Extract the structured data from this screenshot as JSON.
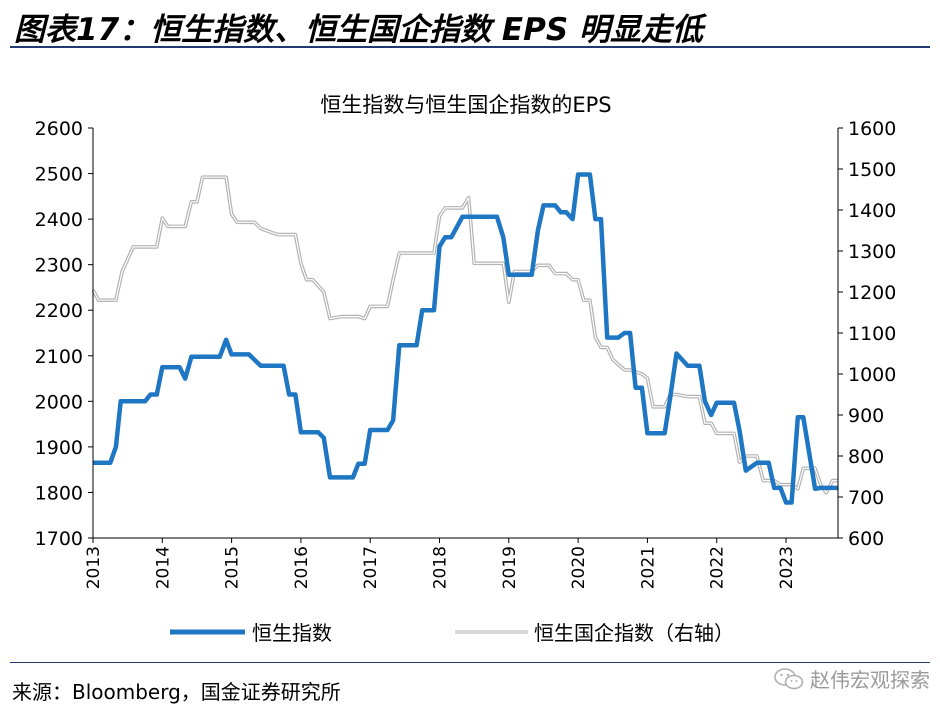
{
  "figure": {
    "title": "图表17：恒生指数、恒生国企指数 EPS 明显走低",
    "source": "来源：Bloomberg，国金证券研究所",
    "watermark": "赵伟宏观探索"
  },
  "chart_data": {
    "type": "line",
    "title": "恒生指数与恒生国企指数的EPS",
    "x_ticks": [
      "2013",
      "2014",
      "2015",
      "2016",
      "2017",
      "2018",
      "2019",
      "2020",
      "2021",
      "2022",
      "2023"
    ],
    "xlim": [
      2013,
      2023.75
    ],
    "ylim_left": [
      1700,
      2600
    ],
    "ylim_right": [
      600,
      1600
    ],
    "y_ticks_left": [
      1700,
      1800,
      1900,
      2000,
      2100,
      2200,
      2300,
      2400,
      2500,
      2600
    ],
    "y_ticks_right": [
      600,
      700,
      800,
      900,
      1000,
      1100,
      1200,
      1300,
      1400,
      1500,
      1600
    ],
    "legend_position": "bottom",
    "colors": {
      "hsi": "#1f77c4",
      "hscei": "#b3b3b3",
      "axis": "#000000"
    },
    "series": [
      {
        "name": "恒生指数",
        "axis": "left",
        "x": [
          2013.0,
          2013.25,
          2013.33,
          2013.4,
          2013.75,
          2013.83,
          2013.92,
          2014.0,
          2014.25,
          2014.33,
          2014.42,
          2014.83,
          2014.92,
          2015.0,
          2015.25,
          2015.42,
          2015.75,
          2015.83,
          2015.92,
          2016.0,
          2016.25,
          2016.33,
          2016.42,
          2016.75,
          2016.83,
          2016.92,
          2017.0,
          2017.25,
          2017.33,
          2017.42,
          2017.67,
          2017.75,
          2017.92,
          2018.0,
          2018.08,
          2018.17,
          2018.33,
          2018.42,
          2018.83,
          2018.92,
          2019.0,
          2019.33,
          2019.42,
          2019.5,
          2019.67,
          2019.75,
          2019.83,
          2019.92,
          2020.0,
          2020.17,
          2020.25,
          2020.33,
          2020.42,
          2020.58,
          2020.67,
          2020.75,
          2020.83,
          2020.92,
          2021.0,
          2021.25,
          2021.33,
          2021.42,
          2021.58,
          2021.75,
          2021.83,
          2021.92,
          2022.0,
          2022.25,
          2022.33,
          2022.42,
          2022.58,
          2022.75,
          2022.83,
          2022.92,
          2023.0,
          2023.08,
          2023.17,
          2023.25,
          2023.42,
          2023.5,
          2023.58,
          2023.75
        ],
        "y": [
          1865,
          1865,
          1900,
          2000,
          2000,
          2015,
          2015,
          2075,
          2075,
          2050,
          2098,
          2098,
          2135,
          2103,
          2103,
          2078,
          2078,
          2015,
          2015,
          1932,
          1932,
          1920,
          1833,
          1833,
          1863,
          1863,
          1937,
          1937,
          1958,
          2123,
          2123,
          2200,
          2200,
          2340,
          2360,
          2360,
          2405,
          2405,
          2405,
          2360,
          2278,
          2278,
          2375,
          2430,
          2430,
          2415,
          2415,
          2400,
          2498,
          2498,
          2400,
          2400,
          2140,
          2140,
          2150,
          2150,
          2030,
          2030,
          1930,
          1930,
          2010,
          2105,
          2078,
          2078,
          2000,
          1970,
          1997,
          1997,
          1935,
          1848,
          1865,
          1865,
          1810,
          1810,
          1778,
          1778,
          1965,
          1965,
          1808,
          1810,
          1810,
          1810
        ]
      },
      {
        "name": "恒生国企指数（右轴）",
        "axis": "right",
        "x": [
          2013.0,
          2013.08,
          2013.33,
          2013.42,
          2013.58,
          2013.92,
          2014.0,
          2014.08,
          2014.33,
          2014.42,
          2014.5,
          2014.58,
          2014.92,
          2015.0,
          2015.08,
          2015.33,
          2015.42,
          2015.58,
          2015.67,
          2015.92,
          2016.0,
          2016.08,
          2016.17,
          2016.33,
          2016.42,
          2016.58,
          2016.75,
          2016.83,
          2016.92,
          2017.0,
          2017.25,
          2017.33,
          2017.42,
          2017.58,
          2017.92,
          2018.0,
          2018.08,
          2018.33,
          2018.42,
          2018.5,
          2018.58,
          2018.92,
          2019.0,
          2019.08,
          2019.33,
          2019.42,
          2019.58,
          2019.67,
          2019.83,
          2019.92,
          2020.0,
          2020.08,
          2020.17,
          2020.25,
          2020.33,
          2020.42,
          2020.5,
          2020.67,
          2020.75,
          2020.92,
          2021.0,
          2021.08,
          2021.25,
          2021.33,
          2021.42,
          2021.58,
          2021.75,
          2021.83,
          2021.92,
          2022.0,
          2022.25,
          2022.33,
          2022.42,
          2022.58,
          2022.67,
          2022.83,
          2022.92,
          2023.08,
          2023.17,
          2023.25,
          2023.42,
          2023.5,
          2023.58,
          2023.67,
          2023.75
        ],
        "y": [
          1205,
          1180,
          1180,
          1250,
          1310,
          1310,
          1380,
          1360,
          1360,
          1420,
          1420,
          1480,
          1480,
          1390,
          1370,
          1370,
          1355,
          1345,
          1340,
          1340,
          1270,
          1230,
          1230,
          1200,
          1135,
          1140,
          1140,
          1140,
          1135,
          1165,
          1165,
          1230,
          1295,
          1295,
          1295,
          1385,
          1405,
          1405,
          1430,
          1270,
          1270,
          1270,
          1175,
          1250,
          1250,
          1265,
          1265,
          1245,
          1245,
          1230,
          1230,
          1180,
          1180,
          1090,
          1065,
          1065,
          1035,
          1010,
          1010,
          1000,
          990,
          920,
          920,
          950,
          950,
          945,
          945,
          880,
          880,
          855,
          855,
          785,
          800,
          800,
          740,
          740,
          730,
          730,
          720,
          770,
          770,
          730,
          710,
          740,
          740
        ]
      }
    ]
  }
}
